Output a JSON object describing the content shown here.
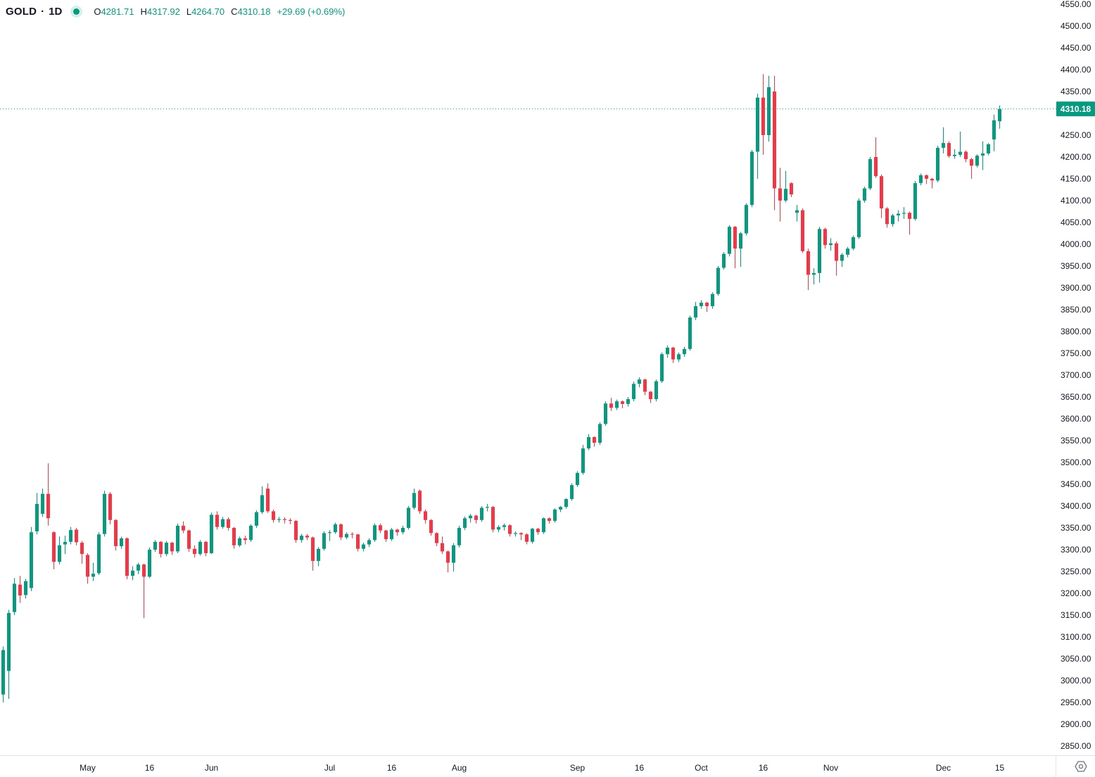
{
  "header": {
    "symbol": "GOLD",
    "separator": "·",
    "interval": "1D",
    "ohlc": {
      "open_label": "O",
      "open": "4281.71",
      "high_label": "H",
      "high": "4317.92",
      "low_label": "L",
      "low": "4264.70",
      "close_label": "C",
      "close": "4310.18",
      "change": "+29.69",
      "change_pct": "(+0.69%)"
    }
  },
  "colors": {
    "up": "#089981",
    "down": "#f23645",
    "axis_text": "#131722",
    "muted_icon": "#787b86",
    "border": "#e0e3eb",
    "last_price_line": "#089981",
    "price_label_bg": "#089981",
    "price_label_text": "#ffffff",
    "background": "#ffffff"
  },
  "price_scale": {
    "min": 2850,
    "max": 4550,
    "step": 50,
    "labels": [
      "4550.00",
      "4500.00",
      "4450.00",
      "4400.00",
      "4350.00",
      "4300.00",
      "4250.00",
      "4200.00",
      "4150.00",
      "4100.00",
      "4050.00",
      "4000.00",
      "3950.00",
      "3900.00",
      "3850.00",
      "3800.00",
      "3750.00",
      "3700.00",
      "3650.00",
      "3600.00",
      "3550.00",
      "3500.00",
      "3450.00",
      "3400.00",
      "3350.00",
      "3300.00",
      "3250.00",
      "3200.00",
      "3150.00",
      "3100.00",
      "3050.00",
      "3000.00",
      "2950.00",
      "2900.00",
      "2850.00"
    ],
    "last_price_label": "4310.18"
  },
  "time_scale": {
    "ticks": [
      {
        "label": "May",
        "index": 15
      },
      {
        "label": "16",
        "index": 26
      },
      {
        "label": "Jun",
        "index": 37
      },
      {
        "label": "Jul",
        "index": 58
      },
      {
        "label": "16",
        "index": 69
      },
      {
        "label": "Aug",
        "index": 81
      },
      {
        "label": "Sep",
        "index": 102
      },
      {
        "label": "16",
        "index": 113
      },
      {
        "label": "Oct",
        "index": 124
      },
      {
        "label": "16",
        "index": 135
      },
      {
        "label": "Nov",
        "index": 147
      },
      {
        "label": "Dec",
        "index": 167
      },
      {
        "label": "15",
        "index": 177
      }
    ]
  },
  "chart_data": {
    "type": "candlestick",
    "title": "GOLD · 1D",
    "symbol": "GOLD",
    "interval": "1D",
    "last_price": 4310.18,
    "change": 29.69,
    "change_pct": 0.69,
    "y_axis": {
      "min": 2850,
      "max": 4550,
      "tick_step": 50,
      "grid": false
    },
    "x_axis_span": "Apr 9 to Dec 15, daily bars",
    "legend_position": "top-left",
    "candles_format": [
      "open",
      "high",
      "low",
      "close"
    ],
    "candles": [
      [
        2968,
        3078,
        2950,
        3070
      ],
      [
        3022,
        3162,
        2958,
        3155
      ],
      [
        3157,
        3235,
        3150,
        3222
      ],
      [
        3220,
        3240,
        3178,
        3195
      ],
      [
        3196,
        3233,
        3188,
        3228
      ],
      [
        3212,
        3352,
        3205,
        3340
      ],
      [
        3342,
        3430,
        3335,
        3405
      ],
      [
        3382,
        3440,
        3375,
        3428
      ],
      [
        3428,
        3498,
        3355,
        3372
      ],
      [
        3340,
        3342,
        3255,
        3272
      ],
      [
        3272,
        3330,
        3266,
        3310
      ],
      [
        3312,
        3332,
        3290,
        3318
      ],
      [
        3318,
        3352,
        3312,
        3345
      ],
      [
        3346,
        3350,
        3310,
        3317
      ],
      [
        3316,
        3320,
        3268,
        3290
      ],
      [
        3288,
        3292,
        3222,
        3238
      ],
      [
        3238,
        3270,
        3228,
        3245
      ],
      [
        3246,
        3340,
        3242,
        3335
      ],
      [
        3336,
        3435,
        3330,
        3428
      ],
      [
        3428,
        3432,
        3358,
        3368
      ],
      [
        3368,
        3370,
        3298,
        3308
      ],
      [
        3308,
        3330,
        3302,
        3326
      ],
      [
        3326,
        3328,
        3232,
        3240
      ],
      [
        3240,
        3262,
        3230,
        3252
      ],
      [
        3252,
        3270,
        3244,
        3266
      ],
      [
        3266,
        3268,
        3143,
        3238
      ],
      [
        3238,
        3305,
        3235,
        3300
      ],
      [
        3300,
        3322,
        3295,
        3318
      ],
      [
        3318,
        3320,
        3282,
        3290
      ],
      [
        3290,
        3320,
        3285,
        3316
      ],
      [
        3316,
        3318,
        3288,
        3296
      ],
      [
        3296,
        3360,
        3292,
        3355
      ],
      [
        3355,
        3365,
        3338,
        3344
      ],
      [
        3344,
        3346,
        3295,
        3302
      ],
      [
        3302,
        3310,
        3282,
        3290
      ],
      [
        3290,
        3322,
        3286,
        3318
      ],
      [
        3318,
        3320,
        3285,
        3292
      ],
      [
        3292,
        3385,
        3290,
        3380
      ],
      [
        3380,
        3388,
        3346,
        3352
      ],
      [
        3352,
        3375,
        3348,
        3370
      ],
      [
        3370,
        3374,
        3344,
        3350
      ],
      [
        3350,
        3352,
        3302,
        3310
      ],
      [
        3310,
        3330,
        3306,
        3326
      ],
      [
        3326,
        3332,
        3312,
        3322
      ],
      [
        3322,
        3358,
        3318,
        3355
      ],
      [
        3355,
        3390,
        3350,
        3386
      ],
      [
        3386,
        3445,
        3382,
        3425
      ],
      [
        3440,
        3452,
        3384,
        3388
      ],
      [
        3388,
        3392,
        3362,
        3368
      ],
      [
        3368,
        3375,
        3362,
        3370
      ],
      [
        3370,
        3374,
        3360,
        3368
      ],
      [
        3368,
        3372,
        3358,
        3366
      ],
      [
        3366,
        3368,
        3316,
        3322
      ],
      [
        3322,
        3336,
        3316,
        3332
      ],
      [
        3332,
        3336,
        3322,
        3328
      ],
      [
        3328,
        3330,
        3252,
        3274
      ],
      [
        3274,
        3306,
        3262,
        3302
      ],
      [
        3302,
        3342,
        3298,
        3338
      ],
      [
        3338,
        3345,
        3320,
        3340
      ],
      [
        3340,
        3362,
        3336,
        3358
      ],
      [
        3358,
        3360,
        3322,
        3328
      ],
      [
        3328,
        3340,
        3324,
        3336
      ],
      [
        3336,
        3340,
        3326,
        3335
      ],
      [
        3335,
        3336,
        3296,
        3302
      ],
      [
        3302,
        3316,
        3296,
        3312
      ],
      [
        3312,
        3326,
        3306,
        3322
      ],
      [
        3322,
        3360,
        3318,
        3356
      ],
      [
        3356,
        3360,
        3338,
        3344
      ],
      [
        3344,
        3346,
        3318,
        3324
      ],
      [
        3324,
        3350,
        3320,
        3346
      ],
      [
        3346,
        3348,
        3332,
        3340
      ],
      [
        3340,
        3355,
        3335,
        3350
      ],
      [
        3350,
        3400,
        3346,
        3396
      ],
      [
        3396,
        3440,
        3392,
        3430
      ],
      [
        3435,
        3438,
        3382,
        3388
      ],
      [
        3388,
        3392,
        3360,
        3368
      ],
      [
        3368,
        3370,
        3332,
        3338
      ],
      [
        3338,
        3340,
        3308,
        3315
      ],
      [
        3315,
        3330,
        3290,
        3296
      ],
      [
        3296,
        3298,
        3248,
        3270
      ],
      [
        3270,
        3315,
        3250,
        3310
      ],
      [
        3310,
        3355,
        3305,
        3350
      ],
      [
        3350,
        3376,
        3345,
        3372
      ],
      [
        3372,
        3382,
        3362,
        3378
      ],
      [
        3378,
        3380,
        3360,
        3368
      ],
      [
        3368,
        3400,
        3364,
        3396
      ],
      [
        3396,
        3405,
        3388,
        3398
      ],
      [
        3398,
        3400,
        3340,
        3346
      ],
      [
        3346,
        3356,
        3340,
        3352
      ],
      [
        3352,
        3360,
        3344,
        3356
      ],
      [
        3356,
        3358,
        3330,
        3336
      ],
      [
        3336,
        3342,
        3330,
        3338
      ],
      [
        3338,
        3340,
        3322,
        3335
      ],
      [
        3335,
        3338,
        3312,
        3318
      ],
      [
        3318,
        3350,
        3314,
        3348
      ],
      [
        3348,
        3350,
        3334,
        3340
      ],
      [
        3340,
        3374,
        3336,
        3372
      ],
      [
        3372,
        3374,
        3360,
        3366
      ],
      [
        3366,
        3395,
        3362,
        3392
      ],
      [
        3392,
        3400,
        3386,
        3398
      ],
      [
        3398,
        3418,
        3394,
        3416
      ],
      [
        3416,
        3452,
        3412,
        3448
      ],
      [
        3448,
        3480,
        3444,
        3476
      ],
      [
        3476,
        3540,
        3472,
        3532
      ],
      [
        3532,
        3565,
        3528,
        3558
      ],
      [
        3558,
        3560,
        3536,
        3545
      ],
      [
        3545,
        3592,
        3540,
        3588
      ],
      [
        3588,
        3640,
        3584,
        3635
      ],
      [
        3635,
        3648,
        3618,
        3625
      ],
      [
        3625,
        3644,
        3620,
        3640
      ],
      [
        3640,
        3642,
        3624,
        3634
      ],
      [
        3634,
        3650,
        3628,
        3645
      ],
      [
        3645,
        3685,
        3640,
        3680
      ],
      [
        3680,
        3695,
        3672,
        3690
      ],
      [
        3690,
        3692,
        3654,
        3662
      ],
      [
        3662,
        3664,
        3636,
        3645
      ],
      [
        3645,
        3690,
        3640,
        3686
      ],
      [
        3686,
        3752,
        3682,
        3748
      ],
      [
        3748,
        3768,
        3740,
        3763
      ],
      [
        3763,
        3765,
        3728,
        3736
      ],
      [
        3736,
        3752,
        3730,
        3748
      ],
      [
        3748,
        3765,
        3742,
        3760
      ],
      [
        3760,
        3836,
        3756,
        3832
      ],
      [
        3832,
        3868,
        3826,
        3858
      ],
      [
        3858,
        3872,
        3852,
        3866
      ],
      [
        3866,
        3868,
        3845,
        3858
      ],
      [
        3858,
        3890,
        3852,
        3886
      ],
      [
        3886,
        3950,
        3882,
        3946
      ],
      [
        3946,
        3982,
        3942,
        3978
      ],
      [
        3978,
        4044,
        3972,
        4040
      ],
      [
        4040,
        4042,
        3945,
        3990
      ],
      [
        3990,
        4028,
        3948,
        4025
      ],
      [
        4025,
        4094,
        4020,
        4090
      ],
      [
        4090,
        4216,
        4085,
        4212
      ],
      [
        4212,
        4345,
        4150,
        4336
      ],
      [
        4336,
        4390,
        4205,
        4250
      ],
      [
        4250,
        4386,
        4235,
        4360
      ],
      [
        4350,
        4386,
        4078,
        4128
      ],
      [
        4128,
        4175,
        4052,
        4100
      ],
      [
        4100,
        4168,
        4096,
        4127
      ],
      [
        4140,
        4142,
        4108,
        4114
      ],
      [
        4072,
        4090,
        4052,
        4078
      ],
      [
        4078,
        4082,
        3980,
        3984
      ],
      [
        3984,
        3990,
        3895,
        3930
      ],
      [
        3930,
        3945,
        3908,
        3934
      ],
      [
        3934,
        4040,
        3912,
        4035
      ],
      [
        4035,
        4038,
        3990,
        3998
      ],
      [
        3998,
        4014,
        3985,
        4002
      ],
      [
        4002,
        4006,
        3928,
        3962
      ],
      [
        3962,
        3980,
        3948,
        3976
      ],
      [
        3976,
        3994,
        3970,
        3990
      ],
      [
        3990,
        4020,
        3986,
        4016
      ],
      [
        4016,
        4105,
        4012,
        4100
      ],
      [
        4100,
        4132,
        4095,
        4128
      ],
      [
        4128,
        4200,
        4124,
        4195
      ],
      [
        4200,
        4245,
        4152,
        4156
      ],
      [
        4156,
        4160,
        4060,
        4082
      ],
      [
        4082,
        4085,
        4038,
        4046
      ],
      [
        4046,
        4070,
        4040,
        4066
      ],
      [
        4066,
        4078,
        4052,
        4070
      ],
      [
        4070,
        4085,
        4058,
        4072
      ],
      [
        4072,
        4075,
        4022,
        4058
      ],
      [
        4058,
        4145,
        4054,
        4140
      ],
      [
        4140,
        4162,
        4135,
        4158
      ],
      [
        4158,
        4160,
        4138,
        4150
      ],
      [
        4150,
        4152,
        4128,
        4146
      ],
      [
        4146,
        4226,
        4142,
        4221
      ],
      [
        4221,
        4268,
        4208,
        4232
      ],
      [
        4232,
        4236,
        4198,
        4202
      ],
      [
        4202,
        4218,
        4196,
        4205
      ],
      [
        4205,
        4258,
        4200,
        4212
      ],
      [
        4212,
        4215,
        4188,
        4195
      ],
      [
        4195,
        4198,
        4150,
        4180
      ],
      [
        4180,
        4206,
        4176,
        4203
      ],
      [
        4203,
        4236,
        4170,
        4208
      ],
      [
        4208,
        4232,
        4204,
        4229
      ],
      [
        4240,
        4297,
        4213,
        4284
      ],
      [
        4281.71,
        4317.92,
        4264.7,
        4310.18
      ]
    ]
  },
  "settings_icon": "gear"
}
